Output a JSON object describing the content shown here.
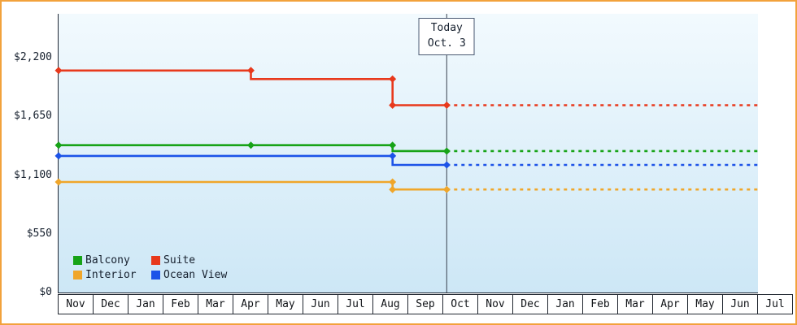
{
  "colors": {
    "frame_border": "#f2a23c",
    "plot_bg_top": "#f2fafe",
    "plot_bg_bottom": "#cde7f6",
    "axis": "#1f2733",
    "today_line": "#39424f",
    "text": "#16202e"
  },
  "chart_data": {
    "type": "line",
    "x_unit": "month",
    "x_categories": [
      "Nov",
      "Dec",
      "Jan",
      "Feb",
      "Mar",
      "Apr",
      "May",
      "Jun",
      "Jul",
      "Aug",
      "Sep",
      "Oct",
      "Nov",
      "Dec",
      "Jan",
      "Feb",
      "Mar",
      "Apr",
      "May",
      "Jun",
      "Jul"
    ],
    "ylim": [
      0,
      2610
    ],
    "y_ticks": [
      {
        "label": "$2,200",
        "value": 2200
      },
      {
        "label": "$1,650",
        "value": 1650
      },
      {
        "label": "$1,100",
        "value": 1100
      },
      {
        "label": "$550",
        "value": 550
      },
      {
        "label": "$0",
        "value": 0
      }
    ],
    "grid": false,
    "legend_position": "bottom-left",
    "today": {
      "x": 11.1,
      "line1": "Today",
      "line2": "Oct. 3"
    },
    "series": [
      {
        "name": "Balcony",
        "color": "#17a317",
        "history": [
          [
            0,
            1380
          ],
          [
            5.5,
            1380
          ],
          [
            9.55,
            1380
          ],
          [
            9.55,
            1325
          ],
          [
            11.1,
            1325
          ]
        ],
        "markers": [
          [
            0,
            1380
          ],
          [
            5.5,
            1380
          ],
          [
            9.55,
            1380
          ],
          [
            11.1,
            1325
          ]
        ],
        "projection": [
          [
            11.1,
            1325
          ],
          [
            20,
            1325
          ]
        ]
      },
      {
        "name": "Suite",
        "color": "#e8391c",
        "history": [
          [
            0,
            2080
          ],
          [
            5.5,
            2080
          ],
          [
            5.5,
            2000
          ],
          [
            9.55,
            2000
          ],
          [
            9.55,
            1755
          ],
          [
            11.1,
            1755
          ]
        ],
        "markers": [
          [
            0,
            2080
          ],
          [
            5.5,
            2080
          ],
          [
            9.55,
            2000
          ],
          [
            9.55,
            1755
          ],
          [
            11.1,
            1755
          ]
        ],
        "projection": [
          [
            11.1,
            1755
          ],
          [
            20,
            1755
          ]
        ]
      },
      {
        "name": "Interior",
        "color": "#f0a62a",
        "history": [
          [
            0,
            1035
          ],
          [
            9.55,
            1035
          ],
          [
            9.55,
            965
          ],
          [
            11.1,
            965
          ]
        ],
        "markers": [
          [
            0,
            1035
          ],
          [
            9.55,
            1035
          ],
          [
            9.55,
            965
          ],
          [
            11.1,
            965
          ]
        ],
        "projection": [
          [
            11.1,
            965
          ],
          [
            20,
            965
          ]
        ]
      },
      {
        "name": "Ocean View",
        "color": "#1c53e8",
        "history": [
          [
            0,
            1280
          ],
          [
            9.55,
            1280
          ],
          [
            9.55,
            1195
          ],
          [
            11.1,
            1195
          ]
        ],
        "markers": [
          [
            0,
            1280
          ],
          [
            9.55,
            1280
          ],
          [
            11.1,
            1195
          ]
        ],
        "projection": [
          [
            11.1,
            1195
          ],
          [
            20,
            1195
          ]
        ]
      }
    ]
  }
}
